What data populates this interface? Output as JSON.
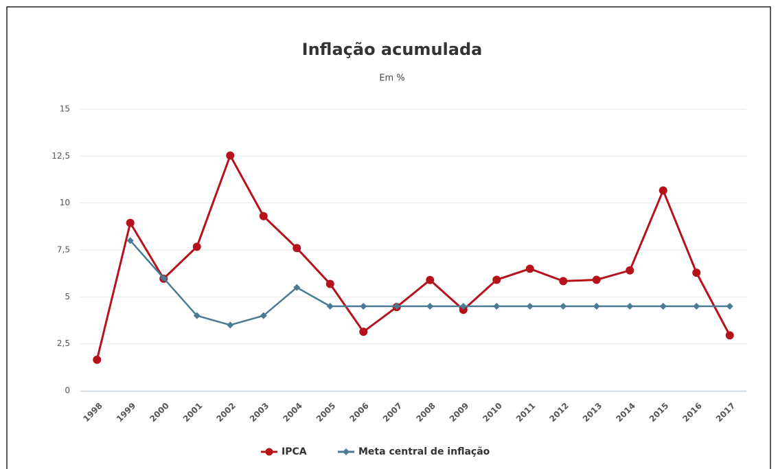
{
  "chart_data": {
    "type": "line",
    "title": "Inflação acumulada",
    "subtitle": "Em %",
    "categories": [
      "1998",
      "1999",
      "2000",
      "2001",
      "2002",
      "2003",
      "2004",
      "2005",
      "2006",
      "2007",
      "2008",
      "2009",
      "2010",
      "2011",
      "2012",
      "2013",
      "2014",
      "2015",
      "2016",
      "2017"
    ],
    "series": [
      {
        "name": "IPCA",
        "color": "#b5121b",
        "values": [
          1.65,
          8.94,
          5.97,
          7.67,
          12.53,
          9.3,
          7.6,
          5.69,
          3.14,
          4.46,
          5.9,
          4.31,
          5.91,
          6.5,
          5.84,
          5.91,
          6.41,
          10.67,
          6.29,
          2.95
        ]
      },
      {
        "name": "Meta central de inflação",
        "color": "#4a7a96",
        "values": [
          null,
          8,
          6,
          4,
          3.5,
          4,
          5.5,
          4.5,
          4.5,
          4.5,
          4.5,
          4.5,
          4.5,
          4.5,
          4.5,
          4.5,
          4.5,
          4.5,
          4.5,
          4.5
        ]
      }
    ],
    "ylim": [
      0,
      15
    ],
    "yticks": [
      0,
      {
        "value": 2.5,
        "label": "2,5"
      },
      5,
      {
        "value": 7.5,
        "label": "7,5"
      },
      10,
      {
        "value": 12.5,
        "label": "12,5"
      },
      15
    ],
    "grid": true
  }
}
